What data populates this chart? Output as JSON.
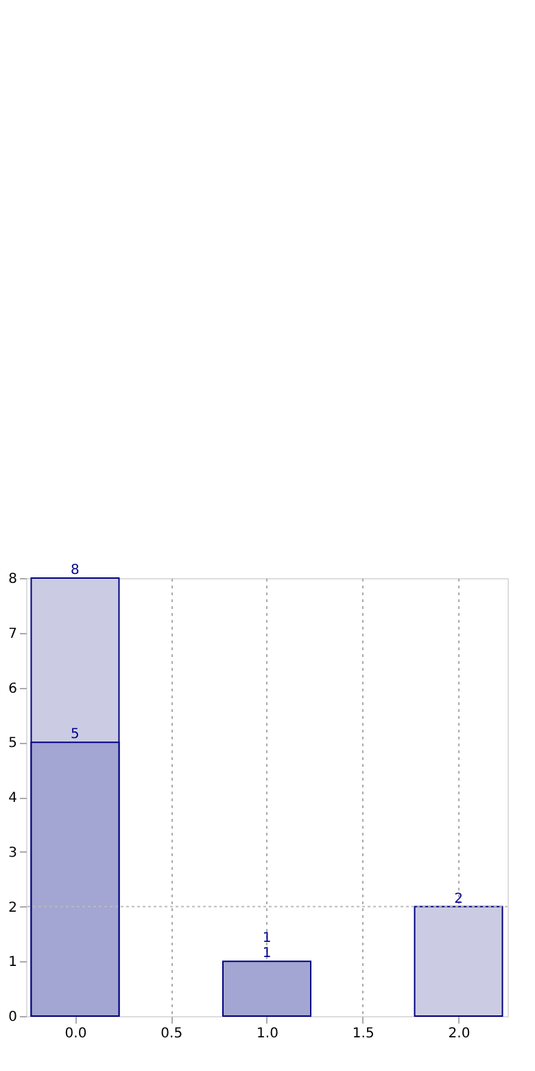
{
  "chart_data": {
    "type": "bar",
    "x": [
      0,
      1,
      2
    ],
    "series": [
      {
        "color": "#cbcce3",
        "values": [
          8,
          null,
          2
        ]
      },
      {
        "color": "#a3a5d2",
        "values": [
          5,
          1,
          null
        ]
      }
    ],
    "xlim": [
      -0.22,
      2.22
    ],
    "xticks": [
      {
        "value": 0,
        "label": "0.0"
      },
      {
        "value": 0.5,
        "label": "0.5"
      },
      {
        "value": 1,
        "label": "1.0"
      },
      {
        "value": 1.5,
        "label": "1.5"
      },
      {
        "value": 2,
        "label": "2.0"
      }
    ],
    "ylim": [
      0,
      8
    ],
    "yticks": [
      0,
      1,
      2,
      3,
      4,
      5,
      6,
      7,
      8
    ],
    "annotations": [
      {
        "text": "1",
        "x": 1,
        "y": 1
      }
    ],
    "grid": "x",
    "data_labels": true,
    "legend": false,
    "ref_lines": [
      {
        "axis": "y",
        "value": 2,
        "line_style": "dotted",
        "color": "#bbbbbb"
      }
    ]
  }
}
